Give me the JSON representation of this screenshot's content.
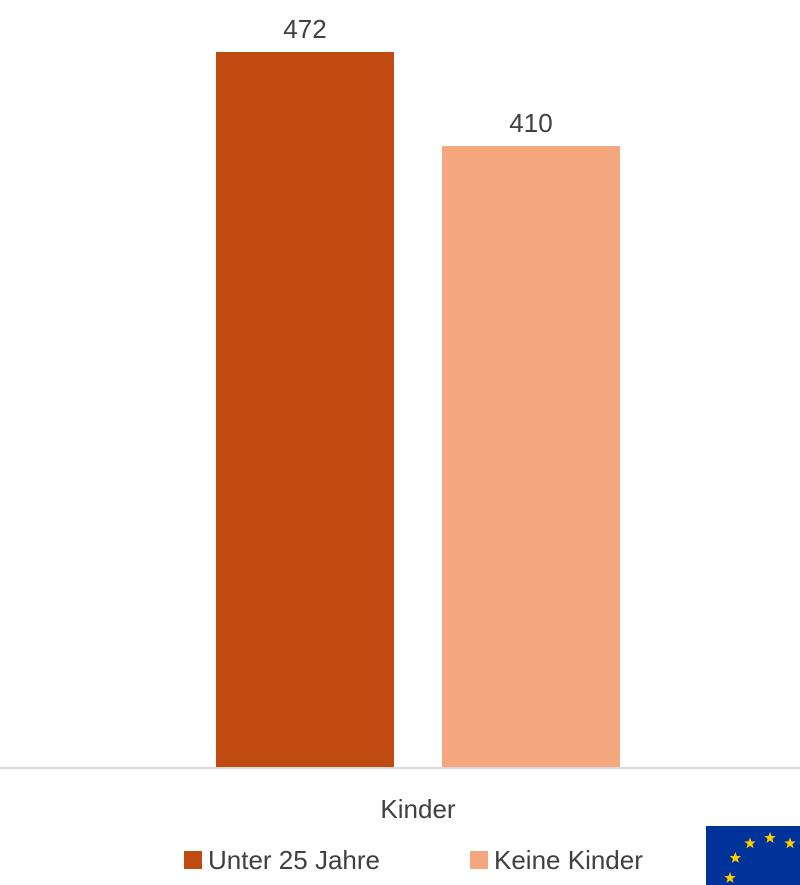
{
  "chart_data": {
    "type": "bar",
    "categories": [
      "Kinder"
    ],
    "series": [
      {
        "name": "Unter 25 Jahre",
        "values": [
          472
        ],
        "color": "#C04A10"
      },
      {
        "name": "Keine Kinder",
        "values": [
          410
        ],
        "color": "#F4A77F"
      }
    ],
    "title": "",
    "xlabel": "",
    "ylabel": "",
    "ylim": [
      0,
      500
    ],
    "grid": false,
    "legend_position": "bottom",
    "data_labels": true
  },
  "logo": {
    "name": "eu-flag-icon",
    "background": "#003399",
    "star_color": "#FFCC00"
  }
}
